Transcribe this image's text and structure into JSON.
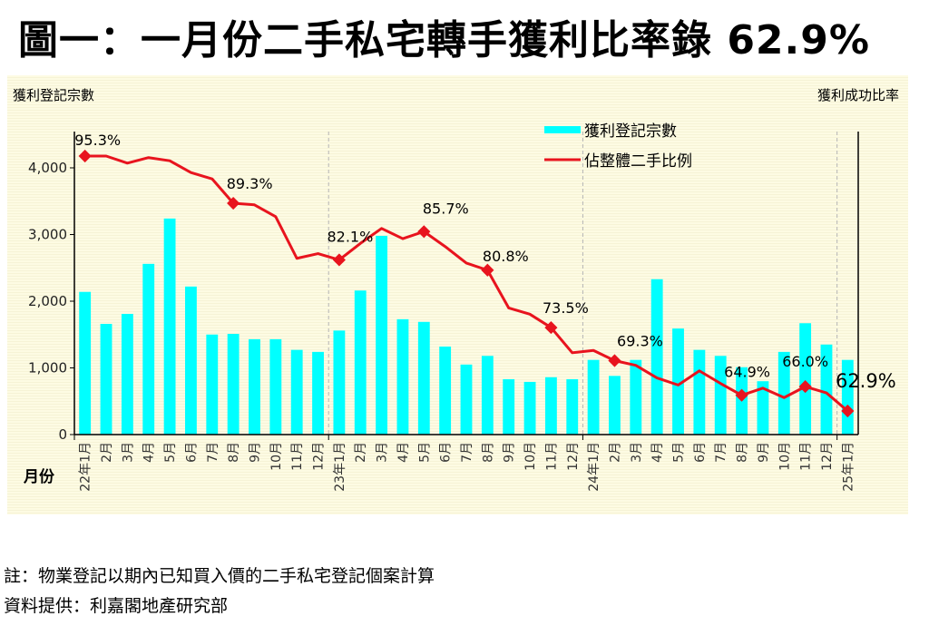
{
  "title": "圖一：一月份二手私宅轉手獲利比率錄 62.9%",
  "chart_data": {
    "type": "bar",
    "title": "圖一：一月份二手私宅轉手獲利比率錄 62.9%",
    "ylabel": "獲利登記宗數",
    "y2label": "獲利成功比率",
    "xlabel": "月份",
    "ylim": [
      0,
      4000
    ],
    "yticks": [
      "0",
      "1,000",
      "2,000",
      "3,000",
      "4,000"
    ],
    "ytick_values": [
      0,
      1000,
      2000,
      3000,
      4000
    ],
    "y2lim": [
      0,
      100
    ],
    "legend_position": "top-center",
    "grid": "vertical dashed lines at year boundaries",
    "categories": [
      "22年1月",
      "2月",
      "3月",
      "4月",
      "5月",
      "6月",
      "7月",
      "8月",
      "9月",
      "10月",
      "11月",
      "12月",
      "23年1月",
      "2月",
      "3月",
      "4月",
      "5月",
      "6月",
      "7月",
      "8月",
      "9月",
      "10月",
      "11月",
      "12月",
      "24年1月",
      "2月",
      "3月",
      "4月",
      "5月",
      "6月",
      "7月",
      "8月",
      "9月",
      "10月",
      "11月",
      "12月",
      "25年1月"
    ],
    "series": [
      {
        "name": "獲利登記宗數",
        "type": "bar",
        "axis": "left",
        "color": "#00ffff",
        "values": [
          2140,
          1660,
          1810,
          2560,
          3240,
          2220,
          1500,
          1510,
          1430,
          1430,
          1270,
          1240,
          1560,
          2160,
          2980,
          1730,
          1690,
          1320,
          1050,
          1180,
          830,
          790,
          860,
          830,
          1120,
          880,
          1120,
          2330,
          1590,
          1270,
          1180,
          1010,
          800,
          1240,
          1670,
          1350,
          1120
        ]
      },
      {
        "name": "佔整體二手比例",
        "type": "line",
        "axis": "right",
        "unit": "%",
        "color": "#e8141e",
        "values": [
          95.3,
          95.3,
          94.4,
          95.1,
          94.7,
          93.2,
          92.4,
          89.3,
          89.1,
          87.6,
          82.3,
          82.9,
          82.1,
          84.2,
          86.1,
          84.8,
          85.7,
          83.8,
          81.7,
          80.8,
          76.0,
          75.2,
          73.5,
          70.3,
          70.6,
          69.3,
          68.7,
          67.1,
          66.2,
          68.0,
          66.4,
          64.9,
          65.8,
          64.6,
          66.0,
          65.2,
          62.9
        ]
      }
    ],
    "annotations": [
      {
        "index": 0,
        "label": "95.3%"
      },
      {
        "index": 7,
        "label": "89.3%"
      },
      {
        "index": 12,
        "label": "82.1%"
      },
      {
        "index": 16,
        "label": "85.7%"
      },
      {
        "index": 19,
        "label": "80.8%"
      },
      {
        "index": 22,
        "label": "73.5%"
      },
      {
        "index": 25,
        "label": "69.3%"
      },
      {
        "index": 31,
        "label": "64.9%"
      },
      {
        "index": 34,
        "label": "66.0%"
      },
      {
        "index": 36,
        "label": "62.9%"
      }
    ],
    "year_boundaries": [
      0,
      12,
      24,
      36
    ]
  },
  "notes": {
    "note": "註：物業登記以期內已知買入價的二手私宅登記個案計算",
    "source": "資料提供：利嘉閣地產研究部"
  }
}
